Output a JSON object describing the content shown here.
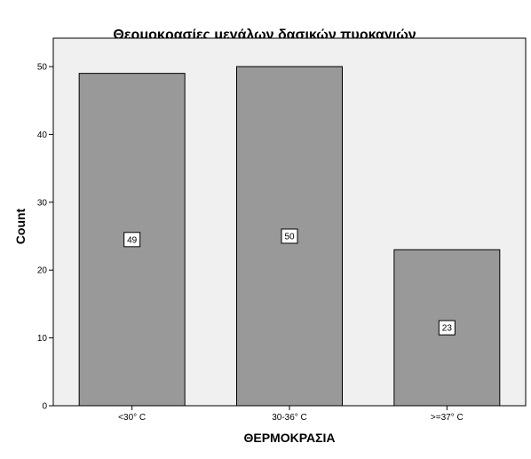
{
  "chart_data": {
    "type": "bar",
    "title": "Θερμοκρασίες μεγάλων δασικών πυρκαγιών",
    "xlabel": "ΘΕΡΜΟΚΡΑΣΙΑ",
    "ylabel": "Count",
    "categories": [
      "<30° C",
      "30-36° C",
      ">=37° C"
    ],
    "values": [
      49,
      50,
      23
    ],
    "data_labels": [
      "49",
      "50",
      "23"
    ],
    "ylim": [
      0,
      55
    ],
    "yticks": [
      0,
      10,
      20,
      30,
      40,
      50
    ],
    "ytick_labels": [
      "0",
      "10",
      "20",
      "30",
      "40",
      "50"
    ],
    "grid": false,
    "legend": "none",
    "colors": {
      "plot_background": "#f0f0f0",
      "bar_fill": "#999999",
      "bar_stroke": "#000000",
      "label_box": "#ffffff"
    }
  }
}
